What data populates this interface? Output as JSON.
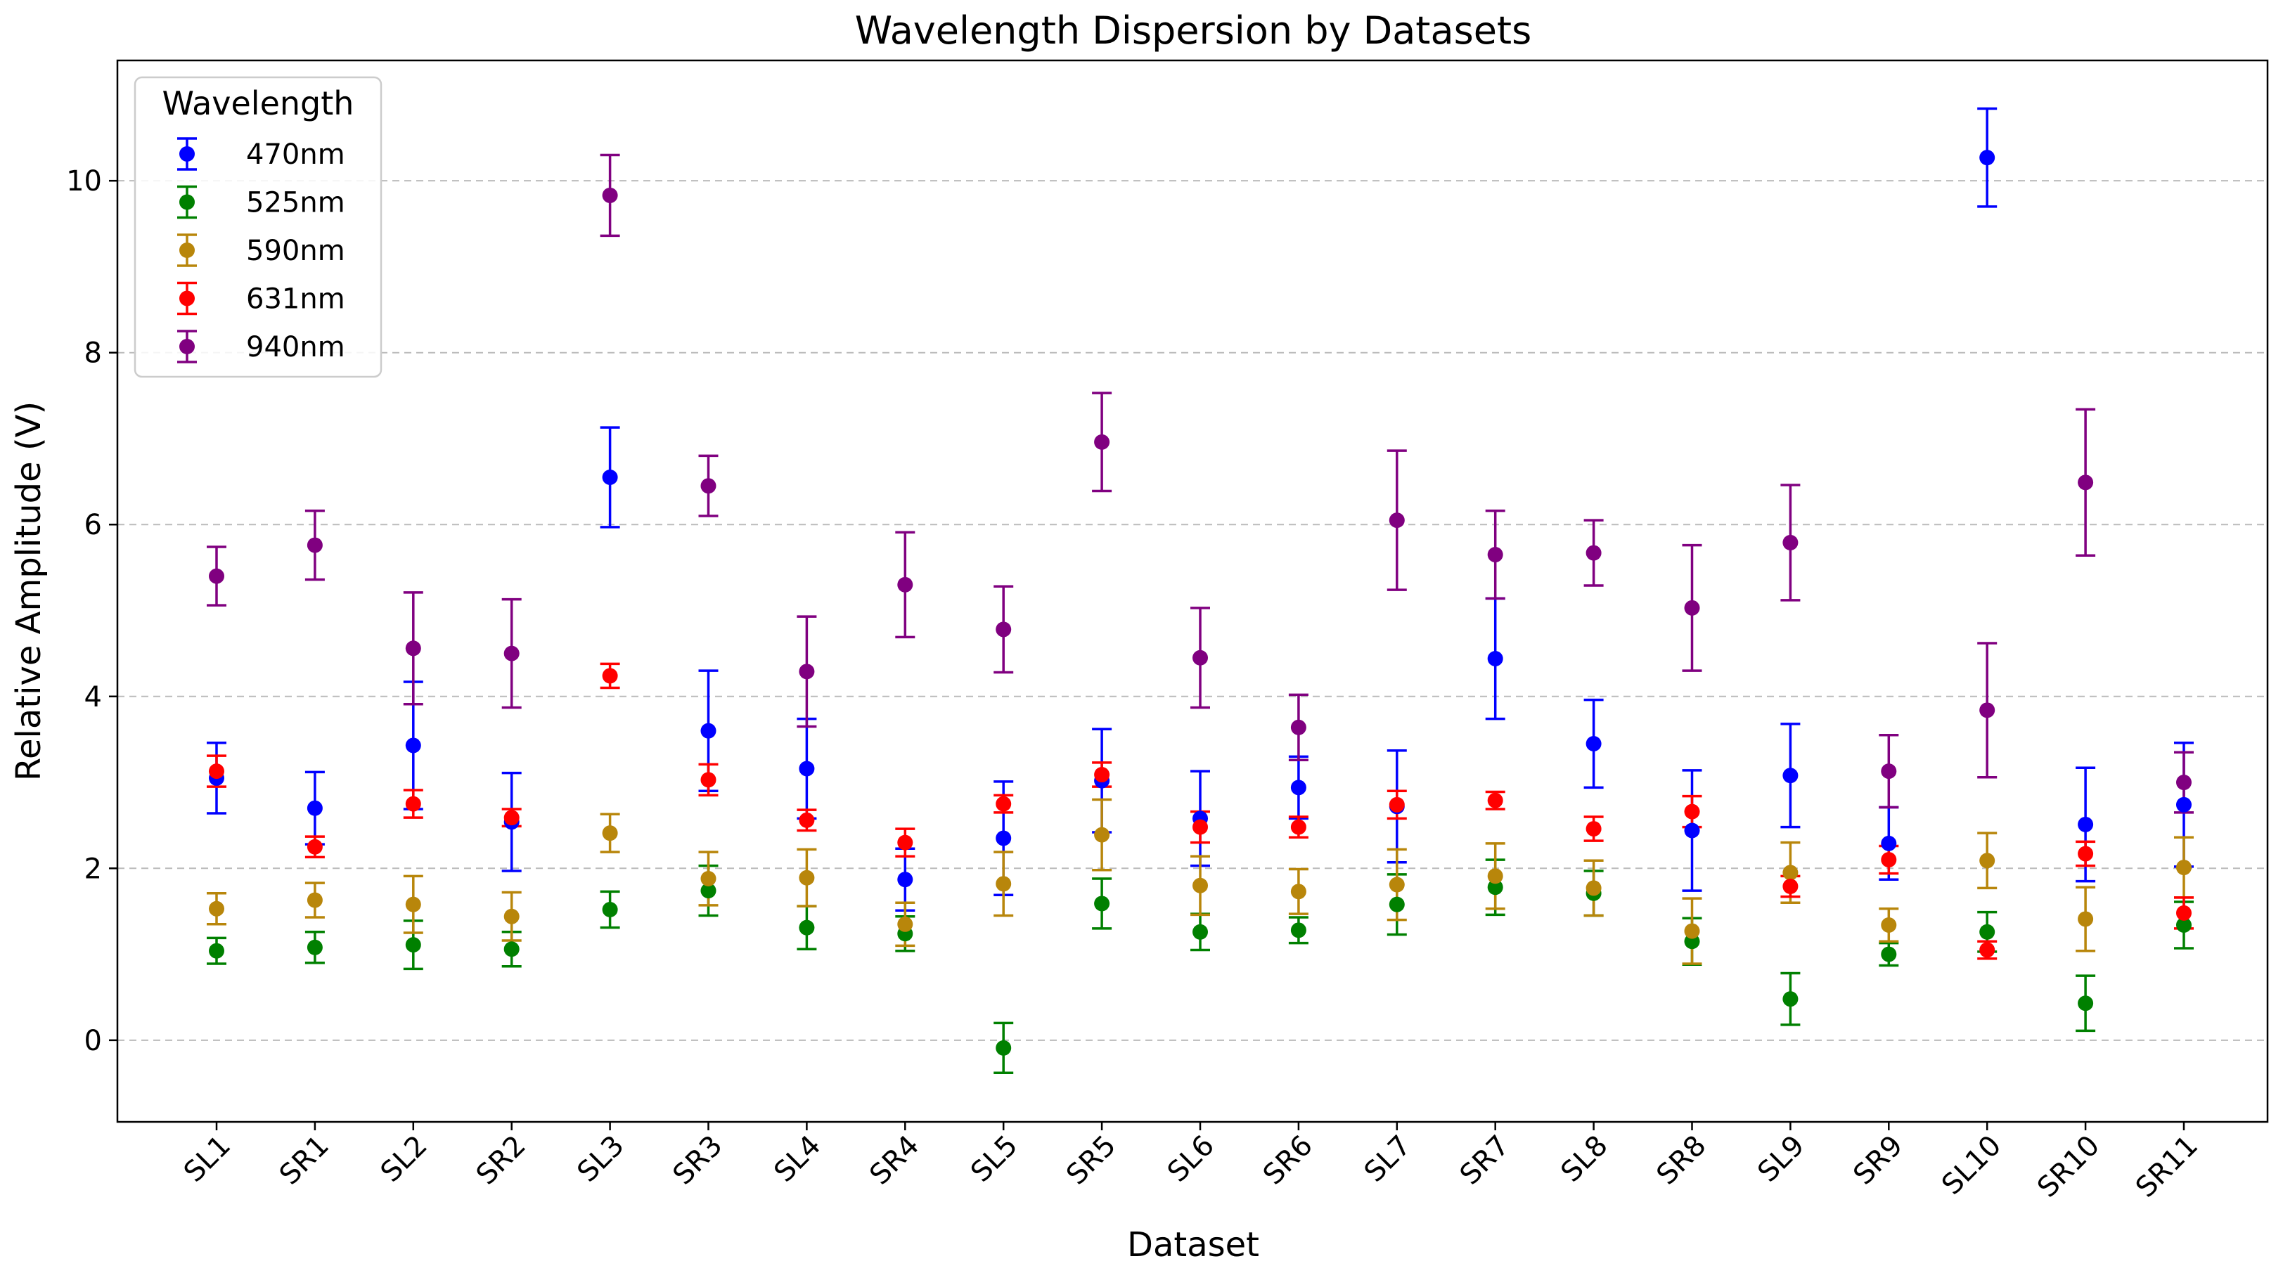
{
  "chart_data": {
    "type": "scatter",
    "title": "Wavelength Dispersion by Datasets",
    "xlabel": "Dataset",
    "ylabel": "Relative Amplitude (V)",
    "ylim": [
      -0.95,
      11.4
    ],
    "yticks": [
      0,
      2,
      4,
      6,
      8,
      10
    ],
    "grid": "y-dashed",
    "legend": {
      "title": "Wavelength",
      "placement": "top-left"
    },
    "categories": [
      "SL1",
      "SR1",
      "SL2",
      "SR2",
      "SL3",
      "SR3",
      "SL4",
      "SR4",
      "SL5",
      "SR5",
      "SL6",
      "SR6",
      "SL7",
      "SR7",
      "SL8",
      "SR8",
      "SL9",
      "SR9",
      "SL10",
      "SR10",
      "SR11"
    ],
    "series": [
      {
        "name": "470nm",
        "color": "#0000ff",
        "values": [
          3.05,
          2.7,
          3.43,
          2.54,
          6.55,
          3.6,
          3.16,
          1.87,
          2.35,
          3.02,
          2.58,
          2.94,
          2.72,
          4.44,
          3.45,
          2.44,
          3.08,
          2.29,
          10.27,
          2.51,
          2.74
        ],
        "errors": [
          0.41,
          0.42,
          0.74,
          0.57,
          0.58,
          0.7,
          0.58,
          0.36,
          0.66,
          0.6,
          0.55,
          0.36,
          0.65,
          0.7,
          0.51,
          0.7,
          0.6,
          0.42,
          0.57,
          0.66,
          0.72
        ]
      },
      {
        "name": "525nm",
        "color": "#008000",
        "values": [
          1.04,
          1.08,
          1.11,
          1.06,
          1.52,
          1.74,
          1.31,
          1.24,
          -0.09,
          1.59,
          1.26,
          1.28,
          1.58,
          1.78,
          1.71,
          1.15,
          0.48,
          1.0,
          1.26,
          0.43,
          1.34
        ],
        "errors": [
          0.15,
          0.18,
          0.28,
          0.2,
          0.21,
          0.29,
          0.25,
          0.2,
          0.29,
          0.29,
          0.21,
          0.15,
          0.35,
          0.32,
          0.26,
          0.27,
          0.3,
          0.13,
          0.23,
          0.32,
          0.27
        ]
      },
      {
        "name": "590nm",
        "color": "#b8860b",
        "values": [
          1.53,
          1.63,
          1.58,
          1.44,
          2.41,
          1.88,
          1.89,
          1.35,
          1.82,
          2.39,
          1.8,
          1.73,
          1.81,
          1.91,
          1.77,
          1.27,
          1.95,
          1.34,
          2.09,
          1.41,
          2.01
        ],
        "errors": [
          0.18,
          0.2,
          0.33,
          0.28,
          0.22,
          0.31,
          0.33,
          0.25,
          0.37,
          0.41,
          0.34,
          0.26,
          0.41,
          0.38,
          0.32,
          0.38,
          0.35,
          0.19,
          0.32,
          0.37,
          0.35
        ]
      },
      {
        "name": "631nm",
        "color": "#ff0000",
        "values": [
          3.13,
          2.25,
          2.75,
          2.59,
          4.24,
          3.03,
          2.56,
          2.3,
          2.75,
          3.09,
          2.48,
          2.48,
          2.74,
          2.79,
          2.46,
          2.66,
          1.79,
          2.1,
          1.05,
          2.17,
          1.48
        ]
      },
      {
        "name": "940nm",
        "color": "#800080",
        "values": [
          5.4,
          5.76,
          4.56,
          4.5,
          9.83,
          6.45,
          4.29,
          5.3,
          4.78,
          6.96,
          4.45,
          3.64,
          6.05,
          5.65,
          5.67,
          5.03,
          5.79,
          3.13,
          3.84,
          6.49,
          3.0
        ],
        "errors": [
          0.34,
          0.4,
          0.65,
          0.63,
          0.47,
          0.35,
          0.64,
          0.61,
          0.5,
          0.57,
          0.58,
          0.38,
          0.81,
          0.51,
          0.38,
          0.73,
          0.67,
          0.42,
          0.78,
          0.85,
          0.35
        ]
      }
    ]
  }
}
